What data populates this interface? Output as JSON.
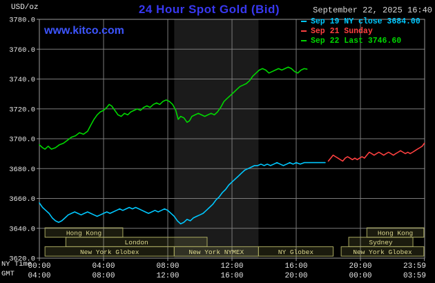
{
  "header": {
    "unit_label": "USD/oz",
    "title": "24 Hour Spot Gold (Bid)",
    "title_color": "#3838f0",
    "timestamp": "September 22, 2025 16:40",
    "watermark": "www.kitco.com",
    "watermark_color": "#3d55ff"
  },
  "legend": [
    {
      "label": "Sep 19 NY close 3684.00",
      "color": "#00c8ff"
    },
    {
      "label": "Sep 21 Sunday",
      "color": "#ff4040"
    },
    {
      "label": "Sep 22 Last 3746.60",
      "color": "#00d800"
    }
  ],
  "axis": {
    "ny_time_label": "NY Time",
    "gmt_label": "GMT",
    "ny_ticks": [
      "00:00",
      "04:00",
      "08:00",
      "12:00",
      "16:00",
      "20:00",
      "23:59"
    ],
    "gmt_ticks": [
      "04:00",
      "08:00",
      "12:00",
      "16:00",
      "20:00",
      "00:00",
      "03:59"
    ]
  },
  "chart_data": {
    "type": "line",
    "title": "24 Hour Spot Gold (Bid)",
    "ylabel": "USD/oz",
    "x_unit": "hour (NY time)",
    "x_range": [
      0,
      24
    ],
    "y_range": [
      3620,
      3780
    ],
    "grid": true,
    "legend_position": "top-right",
    "y_ticks": [
      3780,
      3760,
      3740,
      3720,
      3700,
      3680,
      3660,
      3640,
      3620
    ],
    "y_tick_labels": [
      "3780.0",
      "3760.0",
      "3740.0",
      "3720.0",
      "3700.0",
      "3680.0",
      "3660.0",
      "3640.0",
      "3620.0"
    ],
    "x_tick_hours": [
      0,
      4,
      8,
      12,
      16,
      20,
      23.983
    ],
    "nymex_band_hours": [
      8.4,
      13.65
    ],
    "colors": {
      "background": "#000000",
      "grid": "#7c7c7c",
      "border": "#9c9c9c",
      "band": "#1b1b1b",
      "label": "#e8e8e8",
      "session_fill": "rgba(170,170,90,0.16)",
      "session_border": "#a8a860",
      "session_text": "#ddd98f"
    },
    "series": [
      {
        "id": "sep19",
        "name": "Sep 19 NY close",
        "close": 3684.0,
        "color": "#00c8ff",
        "points": [
          [
            0,
            3657
          ],
          [
            0.2,
            3654
          ],
          [
            0.4,
            3652
          ],
          [
            0.6,
            3650
          ],
          [
            0.8,
            3647
          ],
          [
            1,
            3645
          ],
          [
            1.2,
            3644
          ],
          [
            1.4,
            3645
          ],
          [
            1.6,
            3647
          ],
          [
            1.8,
            3649
          ],
          [
            2,
            3650
          ],
          [
            2.2,
            3651
          ],
          [
            2.4,
            3650
          ],
          [
            2.6,
            3649
          ],
          [
            2.8,
            3650
          ],
          [
            3,
            3651
          ],
          [
            3.2,
            3650
          ],
          [
            3.4,
            3649
          ],
          [
            3.6,
            3648
          ],
          [
            3.8,
            3649
          ],
          [
            4,
            3650
          ],
          [
            4.2,
            3651
          ],
          [
            4.4,
            3650
          ],
          [
            4.6,
            3651
          ],
          [
            4.8,
            3652
          ],
          [
            5,
            3653
          ],
          [
            5.2,
            3652
          ],
          [
            5.4,
            3653
          ],
          [
            5.6,
            3654
          ],
          [
            5.8,
            3653
          ],
          [
            6,
            3654
          ],
          [
            6.2,
            3653
          ],
          [
            6.4,
            3652
          ],
          [
            6.6,
            3651
          ],
          [
            6.8,
            3650
          ],
          [
            7,
            3651
          ],
          [
            7.2,
            3652
          ],
          [
            7.4,
            3651
          ],
          [
            7.6,
            3652
          ],
          [
            7.8,
            3653
          ],
          [
            8,
            3652
          ],
          [
            8.2,
            3650
          ],
          [
            8.4,
            3648
          ],
          [
            8.6,
            3645
          ],
          [
            8.8,
            3643
          ],
          [
            9,
            3644
          ],
          [
            9.2,
            3646
          ],
          [
            9.4,
            3645
          ],
          [
            9.6,
            3647
          ],
          [
            9.8,
            3648
          ],
          [
            10,
            3649
          ],
          [
            10.2,
            3650
          ],
          [
            10.4,
            3652
          ],
          [
            10.6,
            3654
          ],
          [
            10.8,
            3656
          ],
          [
            11,
            3659
          ],
          [
            11.2,
            3661
          ],
          [
            11.4,
            3664
          ],
          [
            11.6,
            3666
          ],
          [
            11.8,
            3669
          ],
          [
            12,
            3671
          ],
          [
            12.2,
            3673
          ],
          [
            12.4,
            3675
          ],
          [
            12.6,
            3677
          ],
          [
            12.8,
            3679
          ],
          [
            13,
            3680
          ],
          [
            13.2,
            3681
          ],
          [
            13.4,
            3682
          ],
          [
            13.6,
            3682
          ],
          [
            13.8,
            3683
          ],
          [
            14,
            3682
          ],
          [
            14.2,
            3683
          ],
          [
            14.4,
            3682
          ],
          [
            14.6,
            3683
          ],
          [
            14.8,
            3684
          ],
          [
            15,
            3683
          ],
          [
            15.2,
            3682
          ],
          [
            15.4,
            3683
          ],
          [
            15.6,
            3684
          ],
          [
            15.8,
            3683
          ],
          [
            16,
            3684
          ],
          [
            16.25,
            3683
          ],
          [
            16.5,
            3684
          ],
          [
            16.75,
            3684
          ],
          [
            17,
            3684
          ],
          [
            17.4,
            3684
          ],
          [
            17.8,
            3684
          ]
        ]
      },
      {
        "id": "sep21",
        "name": "Sep 21 Sunday",
        "color": "#ff4040",
        "points": [
          [
            18,
            3685
          ],
          [
            18.15,
            3687
          ],
          [
            18.3,
            3689
          ],
          [
            18.45,
            3688
          ],
          [
            18.6,
            3687
          ],
          [
            18.75,
            3686
          ],
          [
            18.9,
            3685
          ],
          [
            19.05,
            3687
          ],
          [
            19.2,
            3688
          ],
          [
            19.35,
            3687
          ],
          [
            19.5,
            3686
          ],
          [
            19.65,
            3687
          ],
          [
            19.8,
            3686
          ],
          [
            19.95,
            3687
          ],
          [
            20.1,
            3688
          ],
          [
            20.25,
            3687
          ],
          [
            20.4,
            3689
          ],
          [
            20.55,
            3691
          ],
          [
            20.7,
            3690
          ],
          [
            20.85,
            3689
          ],
          [
            21,
            3690
          ],
          [
            21.15,
            3691
          ],
          [
            21.3,
            3690
          ],
          [
            21.45,
            3689
          ],
          [
            21.6,
            3690
          ],
          [
            21.75,
            3691
          ],
          [
            21.9,
            3690
          ],
          [
            22.05,
            3689
          ],
          [
            22.2,
            3690
          ],
          [
            22.35,
            3691
          ],
          [
            22.5,
            3692
          ],
          [
            22.65,
            3691
          ],
          [
            22.8,
            3690
          ],
          [
            22.95,
            3691
          ],
          [
            23.1,
            3690
          ],
          [
            23.25,
            3691
          ],
          [
            23.4,
            3692
          ],
          [
            23.55,
            3693
          ],
          [
            23.7,
            3694
          ],
          [
            23.85,
            3695
          ],
          [
            23.983,
            3697
          ]
        ]
      },
      {
        "id": "sep22",
        "name": "Sep 22 Last",
        "last": 3746.6,
        "color": "#00d800",
        "points": [
          [
            0,
            3696
          ],
          [
            0.2,
            3694
          ],
          [
            0.35,
            3693
          ],
          [
            0.55,
            3695
          ],
          [
            0.75,
            3693
          ],
          [
            1,
            3694
          ],
          [
            1.25,
            3696
          ],
          [
            1.5,
            3697
          ],
          [
            1.75,
            3699
          ],
          [
            2,
            3701
          ],
          [
            2.25,
            3702
          ],
          [
            2.5,
            3704
          ],
          [
            2.75,
            3703
          ],
          [
            3,
            3705
          ],
          [
            3.2,
            3709
          ],
          [
            3.4,
            3713
          ],
          [
            3.6,
            3716
          ],
          [
            3.8,
            3718
          ],
          [
            4,
            3719
          ],
          [
            4.2,
            3721
          ],
          [
            4.35,
            3723
          ],
          [
            4.5,
            3722
          ],
          [
            4.7,
            3719
          ],
          [
            4.9,
            3716
          ],
          [
            5.1,
            3715
          ],
          [
            5.3,
            3717
          ],
          [
            5.5,
            3716
          ],
          [
            5.7,
            3718
          ],
          [
            5.9,
            3719
          ],
          [
            6.1,
            3720
          ],
          [
            6.3,
            3719
          ],
          [
            6.5,
            3721
          ],
          [
            6.7,
            3722
          ],
          [
            6.9,
            3721
          ],
          [
            7.1,
            3723
          ],
          [
            7.3,
            3724
          ],
          [
            7.5,
            3723
          ],
          [
            7.7,
            3725
          ],
          [
            7.9,
            3726
          ],
          [
            8.1,
            3725
          ],
          [
            8.3,
            3723
          ],
          [
            8.5,
            3719
          ],
          [
            8.65,
            3713
          ],
          [
            8.8,
            3715
          ],
          [
            9,
            3714
          ],
          [
            9.2,
            3711
          ],
          [
            9.35,
            3712
          ],
          [
            9.5,
            3715
          ],
          [
            9.7,
            3716
          ],
          [
            9.9,
            3717
          ],
          [
            10.1,
            3716
          ],
          [
            10.3,
            3715
          ],
          [
            10.5,
            3716
          ],
          [
            10.7,
            3717
          ],
          [
            10.9,
            3716
          ],
          [
            11.1,
            3718
          ],
          [
            11.3,
            3721
          ],
          [
            11.5,
            3725
          ],
          [
            11.7,
            3727
          ],
          [
            11.9,
            3729
          ],
          [
            12.1,
            3731
          ],
          [
            12.3,
            3733
          ],
          [
            12.5,
            3735
          ],
          [
            12.7,
            3736
          ],
          [
            12.9,
            3737
          ],
          [
            13.1,
            3739
          ],
          [
            13.3,
            3742
          ],
          [
            13.5,
            3744
          ],
          [
            13.7,
            3746
          ],
          [
            13.9,
            3747
          ],
          [
            14.1,
            3746
          ],
          [
            14.3,
            3744
          ],
          [
            14.5,
            3745
          ],
          [
            14.7,
            3746
          ],
          [
            14.9,
            3747
          ],
          [
            15.1,
            3746
          ],
          [
            15.3,
            3747
          ],
          [
            15.5,
            3748
          ],
          [
            15.7,
            3747
          ],
          [
            15.9,
            3745
          ],
          [
            16.1,
            3744
          ],
          [
            16.3,
            3746
          ],
          [
            16.5,
            3747
          ],
          [
            16.67,
            3746.6
          ]
        ]
      }
    ],
    "sessions": [
      {
        "row": 0,
        "label": "Hong Kong",
        "start": 0.35,
        "end": 5.2
      },
      {
        "row": 0,
        "label": "Hong Kong",
        "start": 20.4,
        "end": 23.95
      },
      {
        "row": 1,
        "label": "London",
        "start": 1.65,
        "end": 10.45
      },
      {
        "row": 1,
        "label": "Sydney",
        "start": 19.27,
        "end": 23.27
      },
      {
        "row": 2,
        "label": "New York Globex",
        "start": 0.35,
        "end": 8.4
      },
      {
        "row": 2,
        "label": "New York NYMEX",
        "start": 8.4,
        "end": 13.65
      },
      {
        "row": 2,
        "label": "NY Globex",
        "start": 13.65,
        "end": 18.3
      },
      {
        "row": 2,
        "label": "New York Globex",
        "start": 18.8,
        "end": 23.95
      }
    ]
  }
}
